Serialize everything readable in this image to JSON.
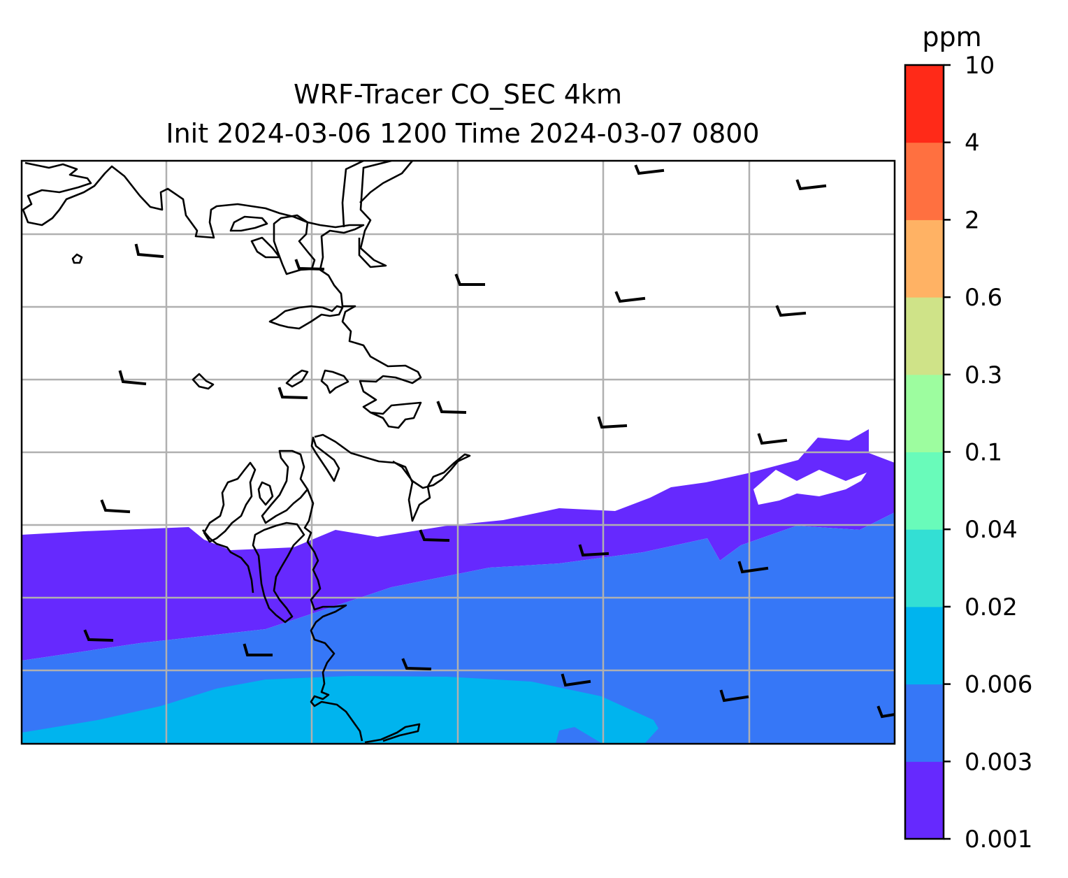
{
  "title": {
    "line1": "WRF-Tracer CO_SEC 4km",
    "line2": "Init 2024-03-06 1200 Time 2024-03-07 0800"
  },
  "colorbar": {
    "unit": "ppm",
    "levels": [
      "0.001",
      "0.003",
      "0.006",
      "0.02",
      "0.04",
      "0.1",
      "0.3",
      "0.6",
      "2",
      "4",
      "10"
    ],
    "colors": [
      "#6629fe",
      "#3677f7",
      "#00b4ee",
      "#33dfd4",
      "#69fbba",
      "#9dfd9f",
      "#cfe388",
      "#ffb264",
      "#ff7040",
      "#ff2a18"
    ]
  },
  "map": {
    "gridlines": true,
    "coastline_color": "#000000",
    "gridline_color": "#b0b0b0",
    "wind_barbs": "wind-barb-icon"
  }
}
